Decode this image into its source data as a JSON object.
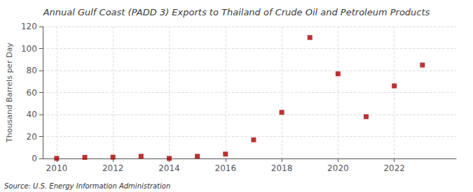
{
  "chart_data": {
    "type": "scatter",
    "title": "Annual Gulf Coast (PADD 3) Exports to Thailand of Crude Oil and Petroleum Products",
    "ylabel": "Thousand Barrels per Day",
    "source": "Source: U.S. Energy Information Administration",
    "x": [
      2010,
      2011,
      2012,
      2013,
      2014,
      2015,
      2016,
      2017,
      2018,
      2019,
      2020,
      2021,
      2022,
      2023
    ],
    "values": [
      0.1,
      1.0,
      1.2,
      2.0,
      0.1,
      2.0,
      4.0,
      17.0,
      42.0,
      110.0,
      77.0,
      38.0,
      66.0,
      85.0
    ],
    "color": "#aa0000",
    "marker": "square",
    "xlim": [
      2009.5,
      2024.2
    ],
    "ylim": [
      0,
      120
    ],
    "xticks": [
      2010,
      2012,
      2014,
      2016,
      2018,
      2020,
      2022
    ],
    "yticks": [
      0,
      20,
      40,
      60,
      80,
      100,
      120
    ],
    "grid": true
  }
}
